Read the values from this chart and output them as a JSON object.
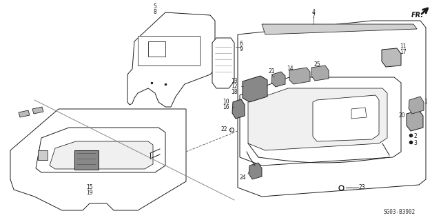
{
  "bg_color": "#ffffff",
  "diagram_code": "SG03-B3902",
  "line_color": "#1a1a1a",
  "lw": 0.7
}
